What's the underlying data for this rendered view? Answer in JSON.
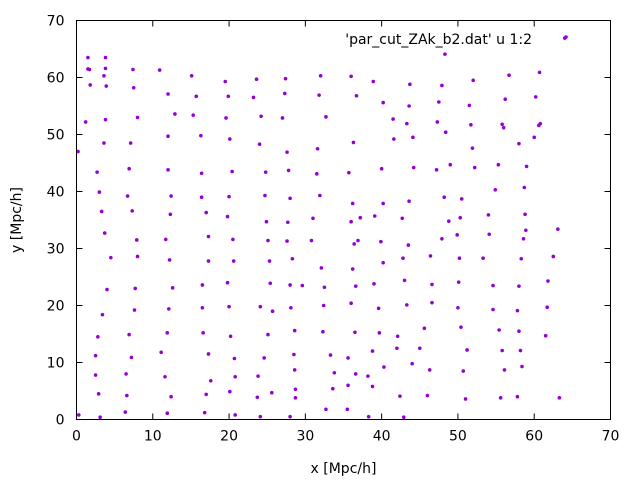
{
  "chart_data": {
    "type": "scatter",
    "title": "",
    "xlabel": "x [Mpc/h]",
    "ylabel": "y [Mpc/h]",
    "xlim": [
      0,
      70
    ],
    "ylim": [
      0,
      70
    ],
    "xticks": [
      "0",
      "10",
      "20",
      "30",
      "40",
      "50",
      "60",
      "70"
    ],
    "yticks": [
      "0",
      "10",
      "20",
      "30",
      "40",
      "50",
      "60",
      "70"
    ],
    "grid": false,
    "legend_position": "top-right",
    "series": [
      {
        "name": "'par_cut_ZAk_b2.dat' u 1:2",
        "color": "#9400d3",
        "points": [
          [
            0.2,
            47.0
          ],
          [
            0.3,
            0.8
          ],
          [
            1.2,
            52.2
          ],
          [
            1.5,
            61.5
          ],
          [
            1.5,
            63.5
          ],
          [
            1.7,
            61.4
          ],
          [
            1.8,
            58.7
          ],
          [
            2.5,
            11.2
          ],
          [
            2.5,
            7.8
          ],
          [
            2.7,
            43.4
          ],
          [
            2.8,
            14.5
          ],
          [
            2.9,
            4.5
          ],
          [
            3.0,
            39.9
          ],
          [
            3.1,
            0.4
          ],
          [
            3.3,
            36.5
          ],
          [
            3.4,
            18.4
          ],
          [
            3.6,
            60.3
          ],
          [
            3.6,
            48.5
          ],
          [
            3.7,
            32.7
          ],
          [
            3.8,
            63.5
          ],
          [
            3.8,
            61.6
          ],
          [
            3.8,
            52.6
          ],
          [
            3.9,
            58.5
          ],
          [
            4.0,
            22.8
          ],
          [
            4.5,
            28.4
          ],
          [
            6.4,
            1.3
          ],
          [
            6.5,
            8.0
          ],
          [
            6.6,
            4.2
          ],
          [
            6.7,
            39.2
          ],
          [
            6.9,
            14.9
          ],
          [
            6.9,
            44.0
          ],
          [
            7.1,
            48.5
          ],
          [
            7.2,
            10.9
          ],
          [
            7.3,
            36.6
          ],
          [
            7.4,
            61.4
          ],
          [
            7.5,
            58.2
          ],
          [
            7.6,
            19.2
          ],
          [
            7.7,
            23.0
          ],
          [
            7.9,
            31.5
          ],
          [
            8.0,
            28.6
          ],
          [
            8.0,
            53.0
          ],
          [
            10.9,
            61.3
          ],
          [
            11.1,
            11.8
          ],
          [
            11.6,
            7.5
          ],
          [
            11.7,
            31.6
          ],
          [
            11.9,
            1.1
          ],
          [
            11.9,
            15.2
          ],
          [
            12.0,
            57.1
          ],
          [
            12.0,
            49.7
          ],
          [
            12.0,
            43.8
          ],
          [
            12.1,
            19.4
          ],
          [
            12.2,
            28.0
          ],
          [
            12.3,
            36.0
          ],
          [
            12.4,
            4.0
          ],
          [
            12.4,
            39.2
          ],
          [
            12.6,
            23.1
          ],
          [
            12.9,
            53.6
          ],
          [
            15.1,
            60.3
          ],
          [
            15.3,
            53.4
          ],
          [
            15.7,
            56.7
          ],
          [
            16.3,
            49.8
          ],
          [
            16.4,
            43.2
          ],
          [
            16.4,
            39.0
          ],
          [
            16.5,
            23.6
          ],
          [
            16.5,
            19.6
          ],
          [
            16.6,
            15.2
          ],
          [
            16.8,
            1.2
          ],
          [
            17.0,
            36.3
          ],
          [
            17.0,
            4.4
          ],
          [
            17.3,
            32.1
          ],
          [
            17.3,
            27.8
          ],
          [
            17.3,
            11.5
          ],
          [
            17.6,
            6.8
          ],
          [
            19.5,
            59.3
          ],
          [
            19.6,
            52.9
          ],
          [
            19.8,
            35.6
          ],
          [
            19.8,
            24.0
          ],
          [
            19.9,
            56.7
          ],
          [
            20.0,
            39.1
          ],
          [
            20.0,
            19.8
          ],
          [
            20.1,
            49.2
          ],
          [
            20.1,
            4.9
          ],
          [
            20.2,
            14.6
          ],
          [
            20.4,
            43.5
          ],
          [
            20.5,
            31.6
          ],
          [
            20.6,
            27.8
          ],
          [
            20.7,
            10.7
          ],
          [
            20.8,
            7.5
          ],
          [
            20.8,
            0.8
          ],
          [
            23.2,
            56.5
          ],
          [
            23.6,
            59.7
          ],
          [
            23.7,
            3.9
          ],
          [
            23.8,
            7.6
          ],
          [
            24.0,
            48.3
          ],
          [
            24.1,
            19.8
          ],
          [
            24.1,
            0.5
          ],
          [
            24.2,
            53.2
          ],
          [
            24.6,
            10.8
          ],
          [
            24.7,
            39.3
          ],
          [
            24.8,
            43.4
          ],
          [
            24.9,
            34.7
          ],
          [
            25.1,
            31.4
          ],
          [
            25.1,
            14.9
          ],
          [
            25.3,
            27.8
          ],
          [
            25.4,
            23.9
          ],
          [
            25.6,
            4.7
          ],
          [
            25.7,
            19.0
          ],
          [
            27.0,
            52.9
          ],
          [
            27.3,
            57.2
          ],
          [
            27.4,
            59.8
          ],
          [
            27.6,
            46.9
          ],
          [
            27.6,
            31.3
          ],
          [
            27.7,
            34.6
          ],
          [
            27.8,
            43.7
          ],
          [
            28.0,
            38.8
          ],
          [
            28.0,
            0.5
          ],
          [
            28.0,
            23.6
          ],
          [
            28.1,
            19.6
          ],
          [
            28.3,
            28.2
          ],
          [
            28.5,
            11.4
          ],
          [
            28.6,
            15.6
          ],
          [
            28.6,
            8.7
          ],
          [
            28.7,
            5.3
          ],
          [
            28.7,
            3.8
          ],
          [
            29.6,
            23.5
          ],
          [
            30.8,
            31.4
          ],
          [
            31.0,
            35.3
          ],
          [
            31.5,
            43.1
          ],
          [
            31.6,
            47.5
          ],
          [
            31.8,
            56.9
          ],
          [
            31.9,
            39.3
          ],
          [
            32.0,
            60.3
          ],
          [
            32.1,
            26.6
          ],
          [
            32.3,
            15.4
          ],
          [
            32.4,
            20.0
          ],
          [
            32.5,
            23.2
          ],
          [
            32.7,
            53.1
          ],
          [
            32.7,
            1.8
          ],
          [
            33.3,
            11.3
          ],
          [
            33.6,
            5.4
          ],
          [
            33.8,
            8.2
          ],
          [
            35.5,
            1.8
          ],
          [
            35.6,
            6.0
          ],
          [
            35.6,
            10.8
          ],
          [
            35.7,
            43.3
          ],
          [
            36.0,
            60.2
          ],
          [
            36.0,
            34.7
          ],
          [
            36.0,
            20.4
          ],
          [
            36.2,
            37.9
          ],
          [
            36.2,
            26.4
          ],
          [
            36.3,
            48.6
          ],
          [
            36.4,
            30.8
          ],
          [
            36.5,
            15.3
          ],
          [
            36.6,
            23.4
          ],
          [
            36.6,
            8.0
          ],
          [
            36.7,
            56.8
          ],
          [
            36.9,
            31.4
          ],
          [
            37.2,
            35.4
          ],
          [
            38.2,
            7.6
          ],
          [
            38.3,
            0.5
          ],
          [
            38.8,
            5.8
          ],
          [
            38.8,
            12.0
          ],
          [
            38.9,
            59.3
          ],
          [
            39.0,
            23.8
          ],
          [
            39.1,
            35.7
          ],
          [
            39.6,
            19.5
          ],
          [
            39.7,
            15.2
          ],
          [
            39.9,
            31.2
          ],
          [
            40.0,
            44.0
          ],
          [
            40.2,
            55.6
          ],
          [
            40.2,
            27.5
          ],
          [
            40.2,
            37.9
          ],
          [
            40.3,
            9.2
          ],
          [
            41.5,
            52.7
          ],
          [
            41.6,
            49.2
          ],
          [
            42.0,
            12.5
          ],
          [
            42.1,
            14.6
          ],
          [
            42.4,
            4.1
          ],
          [
            42.7,
            35.3
          ],
          [
            42.8,
            28.3
          ],
          [
            42.9,
            0.4
          ],
          [
            43.0,
            24.4
          ],
          [
            43.3,
            20.1
          ],
          [
            43.3,
            51.9
          ],
          [
            43.5,
            30.6
          ],
          [
            43.6,
            38.3
          ],
          [
            43.6,
            55.0
          ],
          [
            43.7,
            58.8
          ],
          [
            44.0,
            9.8
          ],
          [
            44.1,
            49.5
          ],
          [
            44.2,
            44.2
          ],
          [
            45.0,
            12.5
          ],
          [
            45.6,
            16.0
          ],
          [
            46.0,
            4.2
          ],
          [
            46.3,
            8.7
          ],
          [
            46.4,
            28.7
          ],
          [
            46.6,
            20.5
          ],
          [
            46.6,
            23.7
          ],
          [
            47.2,
            43.8
          ],
          [
            47.3,
            52.2
          ],
          [
            47.5,
            55.7
          ],
          [
            47.9,
            58.6
          ],
          [
            47.9,
            31.7
          ],
          [
            48.2,
            39.0
          ],
          [
            48.3,
            64.1
          ],
          [
            48.4,
            50.4
          ],
          [
            48.8,
            34.8
          ],
          [
            49.0,
            44.7
          ],
          [
            49.9,
            32.4
          ],
          [
            50.0,
            19.6
          ],
          [
            50.1,
            24.1
          ],
          [
            50.2,
            28.3
          ],
          [
            50.3,
            35.4
          ],
          [
            50.4,
            16.2
          ],
          [
            50.5,
            38.7
          ],
          [
            50.7,
            8.5
          ],
          [
            51.0,
            3.6
          ],
          [
            51.2,
            12.2
          ],
          [
            51.5,
            55.1
          ],
          [
            51.7,
            51.7
          ],
          [
            51.9,
            47.6
          ],
          [
            52.0,
            59.5
          ],
          [
            52.2,
            44.2
          ],
          [
            53.3,
            28.3
          ],
          [
            54.0,
            35.9
          ],
          [
            54.1,
            32.5
          ],
          [
            54.6,
            23.5
          ],
          [
            54.6,
            19.3
          ],
          [
            54.9,
            40.3
          ],
          [
            55.3,
            44.7
          ],
          [
            55.4,
            15.7
          ],
          [
            55.6,
            3.8
          ],
          [
            55.8,
            51.8
          ],
          [
            55.8,
            12.1
          ],
          [
            56.0,
            51.2
          ],
          [
            56.1,
            8.7
          ],
          [
            56.2,
            56.2
          ],
          [
            56.7,
            60.4
          ],
          [
            57.8,
            19.1
          ],
          [
            57.8,
            4.0
          ],
          [
            58.0,
            48.4
          ],
          [
            58.0,
            23.4
          ],
          [
            58.0,
            15.5
          ],
          [
            58.2,
            12.1
          ],
          [
            58.3,
            28.2
          ],
          [
            58.4,
            9.3
          ],
          [
            58.6,
            31.7
          ],
          [
            58.7,
            40.7
          ],
          [
            58.8,
            36.0
          ],
          [
            58.9,
            33.2
          ],
          [
            59.0,
            44.4
          ],
          [
            60.0,
            49.5
          ],
          [
            60.2,
            56.6
          ],
          [
            60.6,
            51.6
          ],
          [
            60.7,
            60.9
          ],
          [
            60.8,
            51.9
          ],
          [
            61.5,
            14.7
          ],
          [
            61.7,
            19.7
          ],
          [
            61.8,
            24.3
          ],
          [
            62.5,
            28.6
          ],
          [
            63.1,
            33.4
          ],
          [
            63.3,
            3.8
          ],
          [
            64.0,
            66.9
          ]
        ]
      }
    ]
  }
}
